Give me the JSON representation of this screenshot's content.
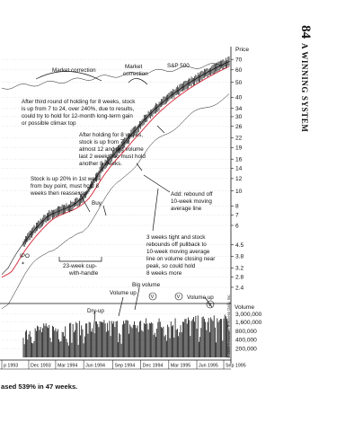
{
  "page": {
    "number": "84",
    "running_head": "A WINNING SYSTEM",
    "copyright": "© 2009 Investor's Business Daily, Inc.",
    "caption": "ased 539% in 47 weeks."
  },
  "colors": {
    "ma_red": "#d42030",
    "ink": "#111111",
    "grid": "#c8c8c8"
  },
  "chart_data": {
    "type": "line",
    "price_axis_title": "Price",
    "price_ticks": [
      "70",
      "60",
      "50",
      "40",
      "34",
      "30",
      "26",
      "22",
      "19",
      "16",
      "14",
      "12",
      "10",
      "8",
      "7",
      "6",
      "4.5",
      "3.8",
      "3.2",
      "2.8",
      "2.4"
    ],
    "price_scale": "log",
    "price_ylim": [
      2.1,
      74
    ],
    "volume_axis_title": "Volume",
    "volume_ticks": [
      "3,000,000",
      "1,600,000",
      "800,000",
      "400,000",
      "200,000"
    ],
    "volume_ylim": [
      100000,
      4200000
    ],
    "x_ticks": [
      "p 1993",
      "Dec 1993",
      "Mar 1994",
      "Jun 1994",
      "Sep 1994",
      "Dec 1994",
      "Mar 1995",
      "Jun 1995",
      "Sep 1995"
    ],
    "x_tick_index": [
      0,
      25,
      50,
      76,
      103,
      129,
      155,
      181,
      206
    ],
    "series": [
      {
        "name": "",
        "values": [
          2.9,
          2.95,
          3,
          3.05,
          3.1,
          3.15,
          3.2,
          3.3,
          3.4,
          3.5,
          3.6,
          3.7,
          3.8,
          3.9,
          4,
          4.1,
          4.2,
          4.3,
          4.4,
          4.5,
          4.6,
          4.7,
          4.8,
          4.9,
          5,
          5.1,
          5.2,
          5.3,
          5.4,
          5.5,
          5.6,
          5.7,
          5.8,
          5.9,
          6,
          6.1,
          6.2,
          6.3,
          6.4,
          6.5,
          6.6,
          6.7,
          6.8,
          6.9,
          7,
          7,
          7.1,
          7.1,
          7.2,
          7.2,
          7.3,
          7.3,
          7.4,
          7.4,
          7.5,
          7.5,
          7.6,
          7.6,
          7.7,
          7.7,
          7.8,
          7.8,
          7.9,
          7.9,
          8,
          8,
          8.1,
          8.2,
          8.3,
          8.4,
          8.5,
          8.6,
          8.7,
          8.8,
          8.9,
          9,
          9.2,
          9.4,
          9.6,
          9.8,
          10,
          10.3,
          10.6,
          10.9,
          11.2,
          11.5,
          11.8,
          12.1,
          12.4,
          12.7,
          13,
          13.3,
          13.6,
          13.9,
          14.2,
          14.5,
          14.8,
          15.1,
          15.4,
          15.7,
          16,
          16.3,
          16.6,
          16.9,
          17.2,
          17.5,
          17.8,
          18.1,
          18.4,
          18.7,
          19,
          19.4,
          19.8,
          20.2,
          20.6,
          21,
          21.4,
          21.8,
          22.2,
          22.6,
          23,
          23.4,
          23.8,
          24.2,
          24.6,
          25,
          25.5,
          26,
          26.5,
          27,
          27.5,
          28,
          28.5,
          29,
          29.5,
          30,
          30.5,
          31,
          31.5,
          32,
          32.5,
          33,
          33.5,
          34,
          34.5,
          35,
          35.5,
          36,
          36.5,
          37,
          37.5,
          38,
          38.5,
          39,
          39.5,
          40,
          40.5,
          41,
          41.5,
          42,
          42.5,
          43,
          43.5,
          44,
          44.5,
          45,
          45.5,
          46,
          46.5,
          47,
          47.5,
          48,
          48.5,
          49,
          49.5,
          50,
          50.5,
          51,
          51.5,
          52,
          52.5,
          53,
          53.5,
          54,
          54.5,
          55,
          55.5,
          56,
          56.5,
          57,
          57.5,
          58,
          58.5,
          59,
          59.5,
          60,
          60.5,
          61,
          61.5,
          62,
          62.5,
          63,
          63.5,
          64,
          64.5,
          65,
          65.5,
          66,
          66.5,
          67,
          67.5,
          68
        ]
      }
    ]
  },
  "annotations": {
    "market_correction_1": "Market correction",
    "market_correction_2a": "Market",
    "market_correction_2b": "correction",
    "sp500": "S&P 500",
    "third_round": [
      "After third round of holding for 8 weeks, stock",
      "is up from 7 to 24, over 240%, due to results,",
      "could try to hold for 12-month long-term gain",
      "or possible climax top"
    ],
    "after_holding": [
      "After holding for 8 weeks,",
      "stock is up from 7 to",
      "almost 12 and big volume",
      "last 2 weeks, so must hold",
      "another 8 weeks."
    ],
    "stock_up_20": [
      "Stock is up 20% in 1st week",
      "from buy point, must hold 8",
      "weeks then reassess."
    ],
    "buy": "Buy",
    "add_rebound": [
      "Add: rebound off",
      "10-week moving",
      "average line"
    ],
    "three_weeks": [
      "3 weeks tight and stock",
      "rebounds off pullback to",
      "10-week moving average",
      "line on volume closing near",
      "peak, so could hold",
      "8 weeks more"
    ],
    "ipo": "IPO",
    "cup_handle": [
      "23-week cup-",
      "with-handle"
    ],
    "big_volume": "Big volume",
    "volume_up_1": "Volume up",
    "volume_up_2": "Volume up",
    "dry_up": "Dry-up"
  }
}
